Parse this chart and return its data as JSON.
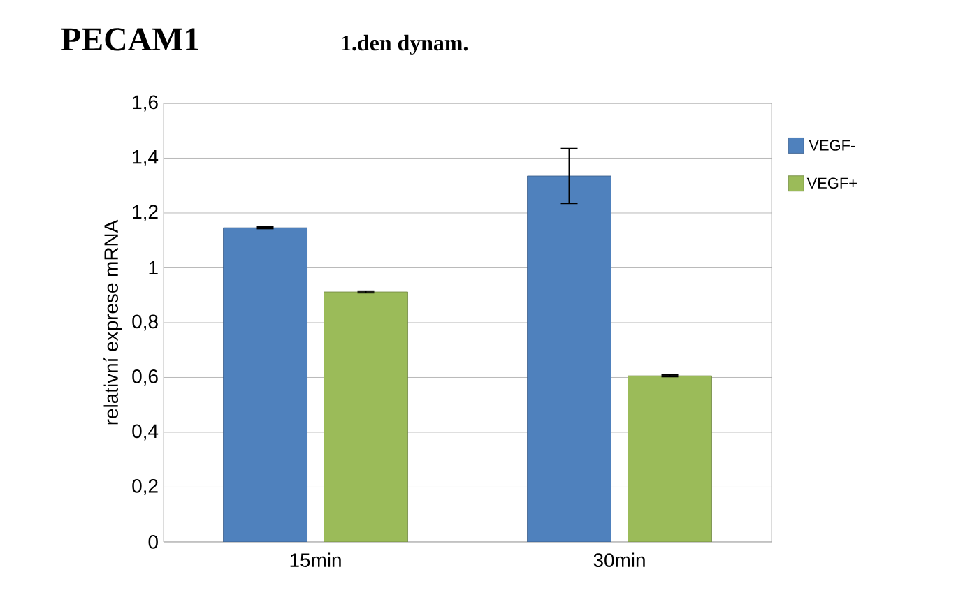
{
  "chart_data": {
    "type": "bar",
    "title": "PECAM1",
    "subtitle": "1.den dynam.",
    "ylabel": "relativní exprese mRNA",
    "categories": [
      "15min",
      "30min"
    ],
    "series": [
      {
        "name": "VEGF-",
        "color": "#4f81bd",
        "values": [
          1.146,
          1.335
        ],
        "errors": [
          0.003,
          0.1
        ]
      },
      {
        "name": "VEGF+",
        "color": "#9bbb59",
        "values": [
          0.912,
          0.606
        ],
        "errors": [
          0.003,
          0.003
        ]
      }
    ],
    "ylim": [
      0,
      1.6
    ],
    "yticks": [
      0,
      {
        "value": 0.2,
        "label": "0,2"
      },
      {
        "value": 0.4,
        "label": "0,4"
      },
      {
        "value": 0.6,
        "label": "0,6"
      },
      {
        "value": 0.8,
        "label": "0,8"
      },
      1,
      {
        "value": 1.2,
        "label": "1,2"
      },
      {
        "value": 1.4,
        "label": "1,4"
      },
      {
        "value": 1.6,
        "label": "1,6"
      }
    ],
    "grid": "y",
    "legend": "right"
  }
}
